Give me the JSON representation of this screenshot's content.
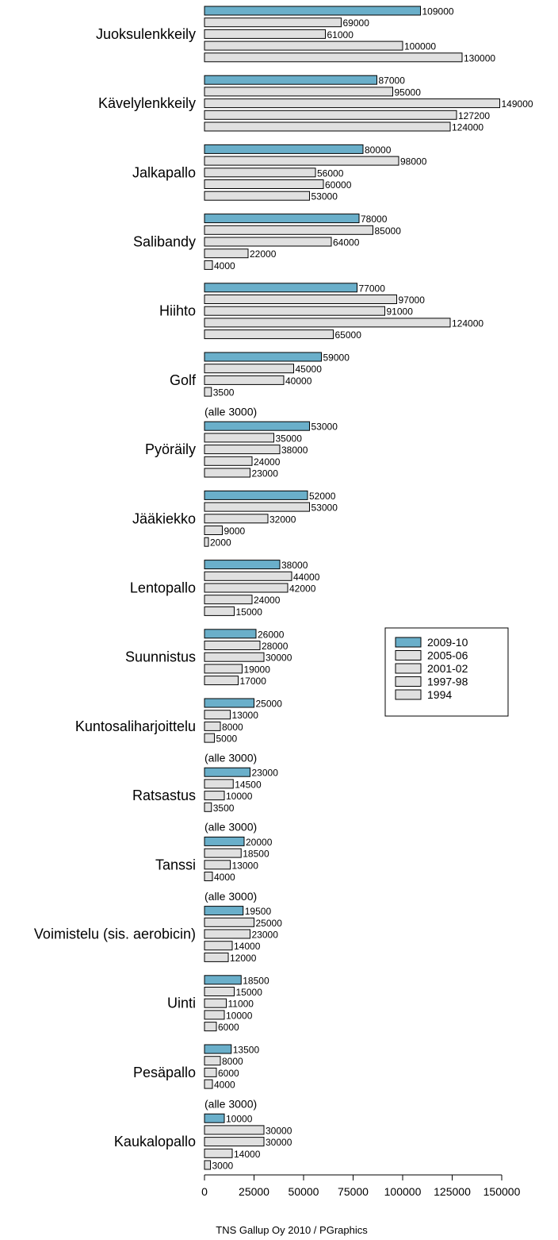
{
  "chart_data": {
    "type": "bar",
    "orientation": "horizontal",
    "colors": {
      "2009-10": "#6aafca",
      "other": "#e0e0e0",
      "stroke": "#000000"
    },
    "series_names": [
      "2009-10",
      "2005-06",
      "2001-02",
      "1997-98",
      "1994"
    ],
    "categories": [
      {
        "name": "Juoksulenkkeily",
        "values": [
          109000,
          69000,
          61000,
          100000,
          130000
        ],
        "labels": [
          "109000",
          "69000",
          "61000",
          "100000",
          "130000"
        ],
        "note": ""
      },
      {
        "name": "Kävelylenkkeily",
        "values": [
          87000,
          95000,
          149000,
          127200,
          124000
        ],
        "labels": [
          "87000",
          "95000",
          "149000",
          "127200",
          "124000"
        ],
        "note": ""
      },
      {
        "name": "Jalkapallo",
        "values": [
          80000,
          98000,
          56000,
          60000,
          53000
        ],
        "labels": [
          "80000",
          "98000",
          "56000",
          "60000",
          "53000"
        ],
        "note": ""
      },
      {
        "name": "Salibandy",
        "values": [
          78000,
          85000,
          64000,
          22000,
          4000
        ],
        "labels": [
          "78000",
          "85000",
          "64000",
          "22000",
          "4000"
        ],
        "note": ""
      },
      {
        "name": "Hiihto",
        "values": [
          77000,
          97000,
          91000,
          124000,
          65000
        ],
        "labels": [
          "77000",
          "97000",
          "91000",
          "124000",
          "65000"
        ],
        "note": ""
      },
      {
        "name": "Golf",
        "values": [
          59000,
          45000,
          40000,
          3500,
          0
        ],
        "labels": [
          "59000",
          "45000",
          "40000",
          "3500",
          ""
        ],
        "note": "(alle 3000)"
      },
      {
        "name": "Pyöräily",
        "values": [
          53000,
          35000,
          38000,
          24000,
          23000
        ],
        "labels": [
          "53000",
          "35000",
          "38000",
          "24000",
          "23000"
        ],
        "note": ""
      },
      {
        "name": "Jääkiekko",
        "values": [
          52000,
          53000,
          32000,
          9000,
          2000
        ],
        "labels": [
          "52000",
          "53000",
          "32000",
          "9000",
          "2000"
        ],
        "note": ""
      },
      {
        "name": "Lentopallo",
        "values": [
          38000,
          44000,
          42000,
          24000,
          15000
        ],
        "labels": [
          "38000",
          "44000",
          "42000",
          "24000",
          "15000"
        ],
        "note": ""
      },
      {
        "name": "Suunnistus",
        "values": [
          26000,
          28000,
          30000,
          19000,
          17000
        ],
        "labels": [
          "26000",
          "28000",
          "30000",
          "19000",
          "17000"
        ],
        "note": ""
      },
      {
        "name": "Kuntosaliharjoittelu",
        "values": [
          25000,
          13000,
          8000,
          5000,
          0
        ],
        "labels": [
          "25000",
          "13000",
          "8000",
          "5000",
          ""
        ],
        "note": "(alle 3000)"
      },
      {
        "name": "Ratsastus",
        "values": [
          23000,
          14500,
          10000,
          3500,
          0
        ],
        "labels": [
          "23000",
          "14500",
          "10000",
          "3500",
          ""
        ],
        "note": "(alle 3000)"
      },
      {
        "name": "Tanssi",
        "values": [
          20000,
          18500,
          13000,
          4000,
          0
        ],
        "labels": [
          "20000",
          "18500",
          "13000",
          "4000",
          ""
        ],
        "note": "(alle 3000)"
      },
      {
        "name": "Voimistelu (sis. aerobicin)",
        "values": [
          19500,
          25000,
          23000,
          14000,
          12000
        ],
        "labels": [
          "19500",
          "25000",
          "23000",
          "14000",
          "12000"
        ],
        "note": ""
      },
      {
        "name": "Uinti",
        "values": [
          18500,
          15000,
          11000,
          10000,
          6000
        ],
        "labels": [
          "18500",
          "15000",
          "11000",
          "10000",
          "6000"
        ],
        "note": ""
      },
      {
        "name": "Pesäpallo",
        "values": [
          13500,
          8000,
          6000,
          4000,
          0
        ],
        "labels": [
          "13500",
          "8000",
          "6000",
          "4000",
          ""
        ],
        "note": "(alle 3000)"
      },
      {
        "name": "Kaukalopallo",
        "values": [
          10000,
          30000,
          30000,
          14000,
          3000
        ],
        "labels": [
          "10000",
          "30000",
          "30000",
          "14000",
          "3000"
        ],
        "note": ""
      }
    ],
    "xlim": [
      0,
      150000
    ],
    "xticks": [
      "0",
      "25000",
      "50000",
      "75000",
      "100000",
      "125000",
      "150000"
    ],
    "legend": [
      "2009-10",
      "2005-06",
      "2001-02",
      "1997-98",
      "1994"
    ],
    "legend_position": "right"
  },
  "credit": "TNS Gallup Oy 2010 / PGraphics"
}
